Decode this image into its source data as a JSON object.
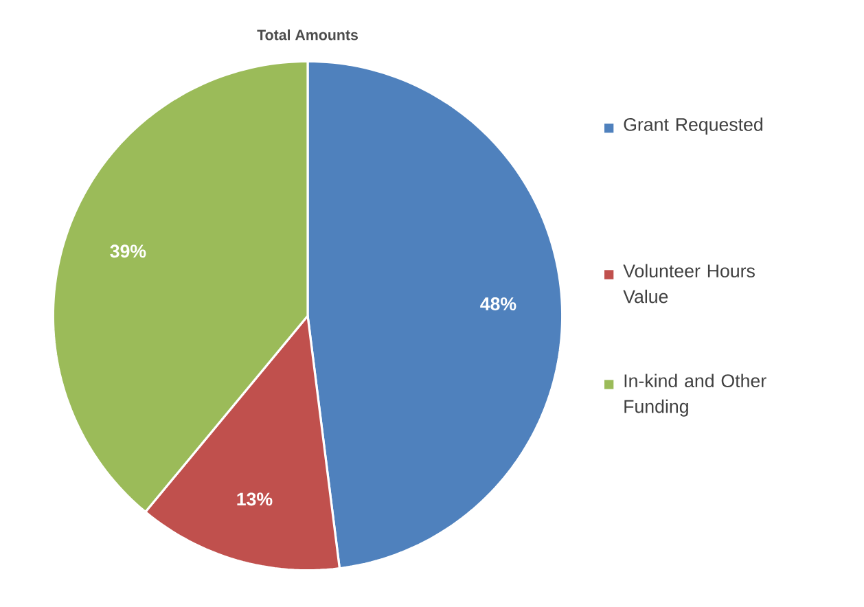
{
  "chart_data": {
    "type": "pie",
    "title": "Total Amounts",
    "categories": [
      "Grant Requested",
      "Volunteer Hours Value",
      "In-kind and Other Funding"
    ],
    "values": [
      48,
      13,
      39
    ],
    "colors": [
      "#4f81bd",
      "#c0504d",
      "#9bbb59"
    ],
    "value_labels": [
      "48%",
      "13%",
      "39%"
    ],
    "legend": "right"
  }
}
